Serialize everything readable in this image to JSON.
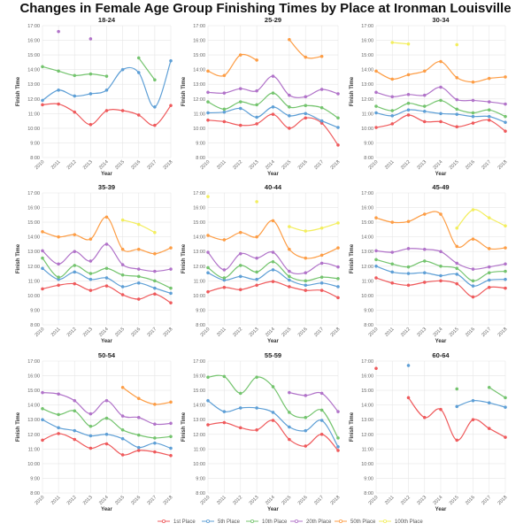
{
  "chart_data": {
    "type": "line",
    "title": "Changes in Female Age Group Finishing Times by Place at Ironman Louisville",
    "xlabel": "Year",
    "ylabel": "Finish Time",
    "x": [
      2010,
      2011,
      2012,
      2013,
      2014,
      2015,
      2016,
      2017,
      2018
    ],
    "ylim": [
      8,
      17
    ],
    "y_unit": "hours",
    "y_ticks": [
      "8:00",
      "9:00",
      "10:00",
      "11:00",
      "12:00",
      "13:00",
      "14:00",
      "15:00",
      "16:00",
      "17:00"
    ],
    "grid": true,
    "legend_placement": "bottom",
    "series_names": [
      "1st Place",
      "5th Place",
      "10th Place",
      "20th Place",
      "50th Place",
      "100th Place"
    ],
    "colors": [
      "#ef5a5c",
      "#5e9fd6",
      "#74c46e",
      "#b173c9",
      "#fd9d45",
      "#f3ee5e"
    ],
    "panels": [
      {
        "title": "18-24",
        "series": [
          [
            11.6,
            11.65,
            11.1,
            10.25,
            11.2,
            11.2,
            10.9,
            10.2,
            11.55
          ],
          [
            11.9,
            12.6,
            12.2,
            12.35,
            12.6,
            14.0,
            13.8,
            11.45,
            14.6
          ],
          [
            14.2,
            13.9,
            13.6,
            13.7,
            13.55,
            null,
            14.8,
            13.3,
            null
          ],
          [
            null,
            16.6,
            null,
            16.1,
            null,
            null,
            null,
            null,
            null
          ],
          [
            null,
            null,
            null,
            null,
            null,
            null,
            null,
            null,
            null
          ],
          [
            null,
            null,
            null,
            null,
            null,
            null,
            null,
            null,
            null
          ]
        ]
      },
      {
        "title": "25-29",
        "series": [
          [
            10.55,
            10.45,
            10.2,
            10.3,
            10.95,
            10.0,
            10.7,
            10.35,
            8.85
          ],
          [
            11.05,
            11.1,
            11.35,
            10.75,
            11.45,
            10.85,
            11.0,
            10.5,
            10.05
          ],
          [
            11.8,
            11.3,
            11.8,
            11.6,
            12.4,
            11.45,
            11.55,
            11.4,
            10.7
          ],
          [
            12.45,
            12.4,
            12.7,
            12.55,
            13.55,
            12.25,
            12.15,
            12.65,
            12.35
          ],
          [
            13.9,
            13.6,
            15.0,
            14.65,
            null,
            16.05,
            14.85,
            14.9,
            null
          ],
          [
            null,
            null,
            null,
            null,
            null,
            null,
            null,
            null,
            null
          ]
        ]
      },
      {
        "title": "30-34",
        "series": [
          [
            10.05,
            10.3,
            10.9,
            10.45,
            10.45,
            10.1,
            10.35,
            10.55,
            9.8
          ],
          [
            11.05,
            10.85,
            11.25,
            11.15,
            11.0,
            10.95,
            10.8,
            10.8,
            10.4
          ],
          [
            11.5,
            11.2,
            11.7,
            11.5,
            11.9,
            11.3,
            11.05,
            11.25,
            10.8
          ],
          [
            12.45,
            12.15,
            12.3,
            12.25,
            12.8,
            11.95,
            11.9,
            11.8,
            11.65
          ],
          [
            13.9,
            13.35,
            13.65,
            13.9,
            14.55,
            13.45,
            13.15,
            13.4,
            13.5
          ],
          [
            null,
            15.85,
            15.75,
            null,
            null,
            15.7,
            null,
            null,
            null
          ]
        ]
      },
      {
        "title": "35-39",
        "series": [
          [
            10.45,
            10.7,
            10.8,
            10.35,
            10.65,
            10.05,
            9.75,
            10.1,
            9.5
          ],
          [
            11.85,
            11.1,
            11.6,
            11.1,
            11.2,
            10.6,
            10.85,
            10.5,
            10.15
          ],
          [
            12.55,
            11.25,
            12.05,
            11.5,
            11.85,
            11.4,
            11.3,
            11.0,
            10.5
          ],
          [
            13.05,
            12.15,
            13.0,
            12.35,
            13.5,
            12.1,
            11.8,
            11.65,
            11.8
          ],
          [
            14.35,
            14.0,
            14.15,
            13.85,
            15.35,
            13.15,
            13.15,
            12.85,
            13.25
          ],
          [
            null,
            null,
            null,
            null,
            null,
            15.15,
            14.85,
            14.3,
            null
          ]
        ]
      },
      {
        "title": "40-44",
        "series": [
          [
            10.25,
            10.55,
            10.4,
            10.7,
            10.95,
            10.6,
            10.35,
            10.35,
            9.85
          ],
          [
            11.55,
            11.05,
            11.3,
            11.1,
            11.75,
            11.05,
            10.7,
            10.85,
            10.6
          ],
          [
            11.9,
            11.2,
            12.05,
            11.6,
            12.3,
            11.3,
            11.0,
            11.25,
            11.15
          ],
          [
            12.95,
            11.75,
            12.85,
            12.55,
            12.95,
            11.65,
            11.55,
            12.2,
            11.95
          ],
          [
            14.1,
            13.8,
            14.3,
            14.0,
            15.1,
            13.15,
            12.55,
            12.75,
            13.25
          ],
          [
            16.75,
            null,
            null,
            16.4,
            null,
            14.7,
            14.4,
            14.6,
            14.95
          ]
        ]
      },
      {
        "title": "45-49",
        "series": [
          [
            11.2,
            10.85,
            10.7,
            10.9,
            11.0,
            10.8,
            9.9,
            10.55,
            10.5
          ],
          [
            12.0,
            11.6,
            11.5,
            11.55,
            11.35,
            11.45,
            10.65,
            11.05,
            11.1
          ],
          [
            12.45,
            12.15,
            11.95,
            12.35,
            12.0,
            11.85,
            11.0,
            11.55,
            11.65
          ],
          [
            13.05,
            12.95,
            13.2,
            13.15,
            13.0,
            12.2,
            11.8,
            11.95,
            12.15
          ],
          [
            15.3,
            15.0,
            15.05,
            15.55,
            15.55,
            13.35,
            13.85,
            13.2,
            13.25
          ],
          [
            null,
            null,
            null,
            null,
            null,
            14.6,
            15.85,
            15.3,
            14.75
          ]
        ]
      },
      {
        "title": "50-54",
        "series": [
          [
            11.6,
            12.05,
            11.65,
            11.05,
            11.35,
            10.6,
            10.9,
            10.8,
            10.55
          ],
          [
            13.0,
            12.45,
            12.25,
            11.9,
            12.0,
            11.7,
            11.1,
            11.4,
            11.05
          ],
          [
            13.75,
            13.35,
            13.6,
            12.55,
            13.1,
            12.3,
            11.95,
            11.75,
            11.85
          ],
          [
            14.85,
            14.75,
            14.3,
            13.4,
            14.3,
            13.25,
            13.15,
            12.7,
            12.75
          ],
          [
            null,
            null,
            null,
            null,
            null,
            15.2,
            14.45,
            14.05,
            14.2
          ],
          [
            null,
            null,
            null,
            null,
            null,
            null,
            null,
            null,
            null
          ]
        ]
      },
      {
        "title": "55-59",
        "series": [
          [
            12.65,
            12.8,
            12.45,
            12.3,
            12.95,
            11.65,
            11.2,
            12.0,
            10.9
          ],
          [
            14.3,
            13.55,
            13.8,
            13.8,
            13.5,
            12.5,
            12.25,
            12.95,
            11.15
          ],
          [
            15.9,
            15.95,
            14.8,
            15.9,
            15.25,
            13.5,
            13.15,
            13.65,
            11.75
          ],
          [
            null,
            null,
            null,
            null,
            null,
            14.85,
            14.65,
            14.8,
            13.55
          ],
          [
            null,
            null,
            null,
            null,
            null,
            null,
            null,
            null,
            null
          ],
          [
            null,
            null,
            null,
            null,
            null,
            null,
            null,
            null,
            null
          ]
        ]
      },
      {
        "title": "60-64",
        "series": [
          [
            16.5,
            null,
            14.5,
            13.15,
            13.7,
            11.6,
            13.0,
            12.4,
            11.8
          ],
          [
            null,
            null,
            16.7,
            null,
            null,
            13.9,
            14.3,
            14.15,
            13.85
          ],
          [
            null,
            null,
            null,
            null,
            null,
            15.1,
            null,
            15.2,
            14.5
          ],
          [
            null,
            null,
            null,
            null,
            null,
            null,
            null,
            null,
            null
          ],
          [
            null,
            null,
            null,
            null,
            null,
            null,
            null,
            null,
            null
          ],
          [
            null,
            null,
            null,
            null,
            null,
            null,
            null,
            null,
            null
          ]
        ]
      }
    ]
  }
}
